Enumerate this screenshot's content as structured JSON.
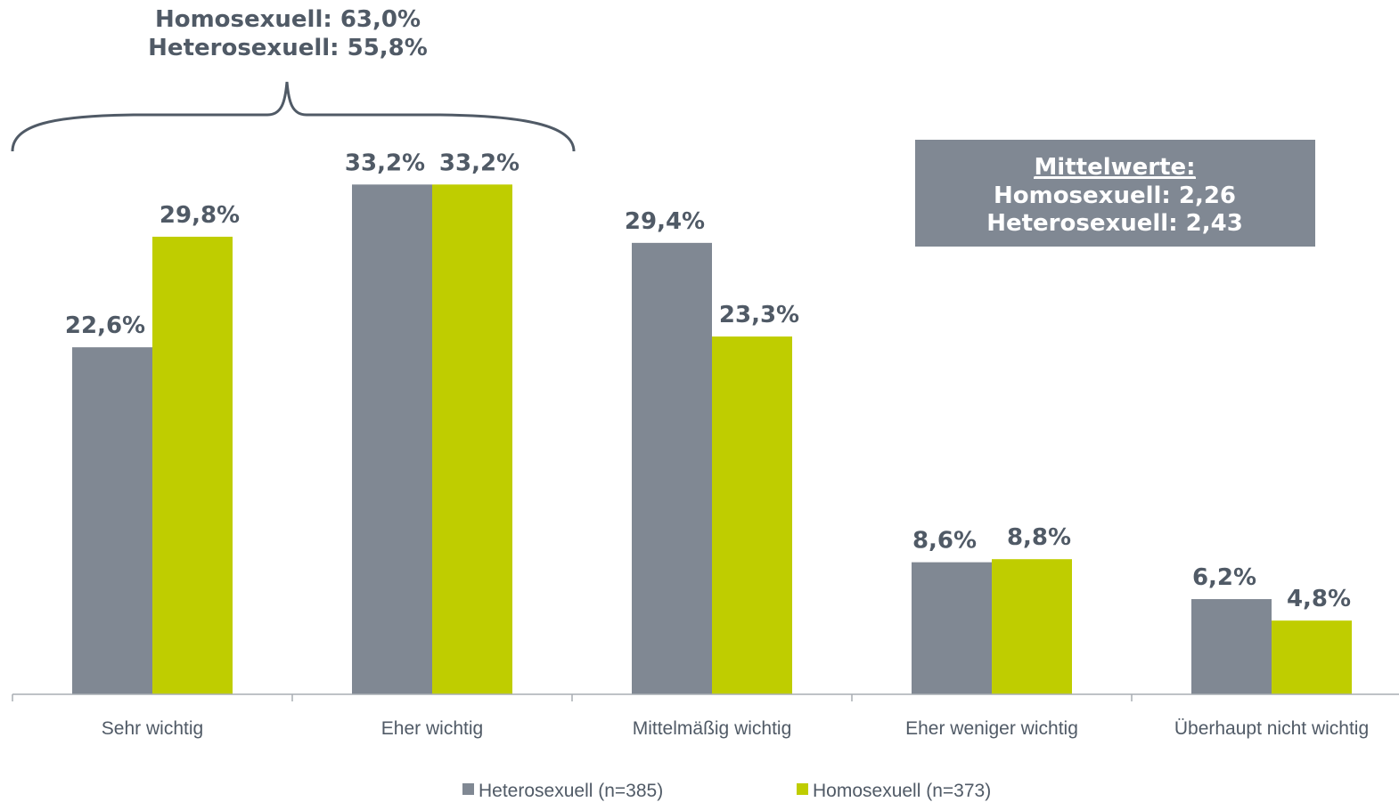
{
  "chart_data": {
    "type": "bar",
    "title": "",
    "xlabel": "",
    "ylabel": "",
    "ylim": [
      0,
      35
    ],
    "grid": false,
    "legend_position": "bottom",
    "categories": [
      "Sehr wichtig",
      "Eher wichtig",
      "Mittelmäßig wichtig",
      "Eher weniger wichtig",
      "Überhaupt nicht wichtig"
    ],
    "series": [
      {
        "name": "Heterosexuell (n=385)",
        "color": "#808893",
        "values": [
          22.6,
          33.2,
          29.4,
          8.6,
          6.2
        ],
        "labels": [
          "22,6%",
          "33,2%",
          "29,4%",
          "8,6%",
          "6,2%"
        ]
      },
      {
        "name": "Homosexuell (n=373)",
        "color": "#bfcd00",
        "values": [
          29.8,
          33.2,
          23.3,
          8.8,
          4.8
        ],
        "labels": [
          "29,8%",
          "33,2%",
          "23,3%",
          "8,8%",
          "4,8%"
        ]
      }
    ],
    "annotations": {
      "bracket_lines": [
        "Homosexuell: 63,0%",
        "Heterosexuell: 55,8%"
      ],
      "box": {
        "heading": "Mittelwerte:",
        "lines": [
          "Homosexuell: 2,26",
          "Heterosexuell: 2,43"
        ]
      }
    },
    "colors": {
      "text": "#505a66",
      "box_background": "#808893",
      "axis": "#a8adb3"
    }
  }
}
